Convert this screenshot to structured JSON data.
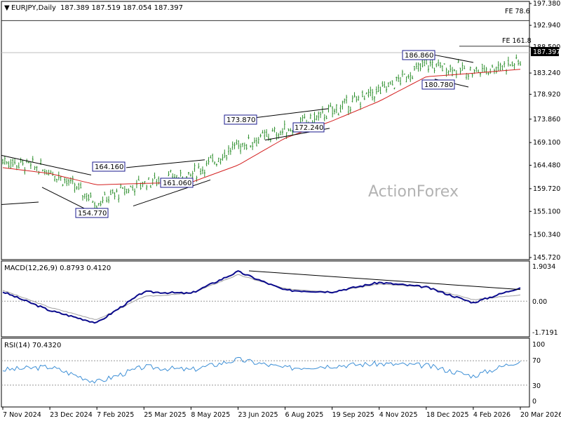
{
  "header": {
    "symbol_tf": "EURJPY,Daily",
    "ohlc": "187.389 187.519 187.054 187.397"
  },
  "watermark": "ActionForex",
  "price_panel": {
    "last_price_label": "187.397",
    "y_ticks": [
      "197.380",
      "192.940",
      "188.500",
      "183.240",
      "178.920",
      "173.860",
      "169.100",
      "164.480",
      "159.720",
      "155.100",
      "150.340",
      "145.720"
    ],
    "fe_labels": [
      "FE 78.6",
      "FE 161.8"
    ],
    "annotations": [
      "164.160",
      "161.060",
      "154.770",
      "173.870",
      "172.240",
      "186.860",
      "180.780"
    ]
  },
  "macd_panel": {
    "title": "MACD(12,26,9) 0.8793 0.4120",
    "y_ticks": [
      "1.9034",
      "0.00",
      "-1.7191"
    ]
  },
  "rsi_panel": {
    "title": "RSI(14) 70.4320",
    "y_ticks": [
      "100",
      "70",
      "30",
      "0"
    ]
  },
  "x_ticks": [
    "7 Nov 2024",
    "23 Dec 2024",
    "7 Feb 2025",
    "25 Mar 2025",
    "8 May 2025",
    "23 Jun 2025",
    "6 Aug 2025",
    "19 Sep 2025",
    "4 Nov 2025",
    "18 Dec 2025",
    "4 Feb 2026",
    "20 Mar 2026"
  ],
  "chart_data": [
    {
      "type": "line",
      "title": "EURJPY,Daily",
      "x": [
        "7 Nov 2024",
        "23 Dec 2024",
        "7 Feb 2025",
        "25 Mar 2025",
        "8 May 2025",
        "23 Jun 2025",
        "6 Aug 2025",
        "19 Sep 2025",
        "4 Nov 2025",
        "18 Dec 2025",
        "4 Feb 2026",
        "20 Mar 2026"
      ],
      "series": [
        {
          "values": [
            165.5,
            163.5,
            157.0,
            161.0,
            162.5,
            168.5,
            171.5,
            175.5,
            179.5,
            185.0,
            183.5,
            185.5
          ]
        },
        {
          "values": [
            164.0,
            162.8,
            160.5,
            160.8,
            161.0,
            164.5,
            170.0,
            173.5,
            177.5,
            182.5,
            183.2,
            184.0
          ]
        }
      ],
      "ylim": [
        145.72,
        197.38
      ],
      "annotations": [
        {
          "label": "154.770",
          "x": "7 Feb 2025",
          "y": 154.77
        },
        {
          "label": "164.160",
          "x": "7 Feb 2025",
          "y": 164.16
        },
        {
          "label": "161.060",
          "x": "25 Mar 2025",
          "y": 161.06
        },
        {
          "label": "173.870",
          "x": "23 Jun 2025",
          "y": 173.87
        },
        {
          "label": "172.240",
          "x": "6 Aug 2025",
          "y": 172.24
        },
        {
          "label": "186.860",
          "x": "18 Dec 2025",
          "y": 186.86
        },
        {
          "label": "180.780",
          "x": "18 Dec 2025",
          "y": 180.78
        }
      ],
      "reference_levels": [
        {
          "label": "FE 78.6",
          "y": 193.9
        },
        {
          "label": "FE 161.8",
          "y": 188.7
        }
      ],
      "last_price": 187.397,
      "grid": false
    },
    {
      "type": "line",
      "title": "MACD(12,26,9) 0.8793 0.4120",
      "x": [
        "7 Nov 2024",
        "23 Dec 2024",
        "7 Feb 2025",
        "25 Mar 2025",
        "8 May 2025",
        "23 Jun 2025",
        "6 Aug 2025",
        "19 Sep 2025",
        "4 Nov 2025",
        "18 Dec 2025",
        "4 Feb 2026",
        "20 Mar 2026"
      ],
      "series": [
        {
          "values": [
            0.6,
            -0.6,
            -1.4,
            0.6,
            0.5,
            1.9,
            0.7,
            0.6,
            1.2,
            0.9,
            -0.1,
            0.88
          ]
        },
        {
          "values": [
            0.7,
            -0.4,
            -1.2,
            0.3,
            0.5,
            1.7,
            0.8,
            0.6,
            1.1,
            0.9,
            0.1,
            0.41
          ]
        }
      ],
      "ylim": [
        -2.2,
        2.4
      ],
      "grid": false
    },
    {
      "type": "line",
      "title": "RSI(14) 70.4320",
      "x": [
        "7 Nov 2024",
        "23 Dec 2024",
        "7 Feb 2025",
        "25 Mar 2025",
        "8 May 2025",
        "23 Jun 2025",
        "6 Aug 2025",
        "19 Sep 2025",
        "4 Nov 2025",
        "18 Dec 2025",
        "4 Feb 2026",
        "20 Mar 2026"
      ],
      "series": [
        {
          "values": [
            55,
            60,
            35,
            60,
            55,
            72,
            58,
            62,
            65,
            62,
            45,
            70.43
          ]
        }
      ],
      "ylim": [
        0,
        100
      ],
      "grid": false
    }
  ],
  "colors": {
    "candle": "#2d8f2d",
    "ma": "#d42020",
    "macd": "#0a0a8c",
    "signal": "#a0a0a0",
    "rsi": "#3d8fd6",
    "trendline": "#000000",
    "annotation_border": "#1a1a8c",
    "ref_line": "#333333"
  }
}
